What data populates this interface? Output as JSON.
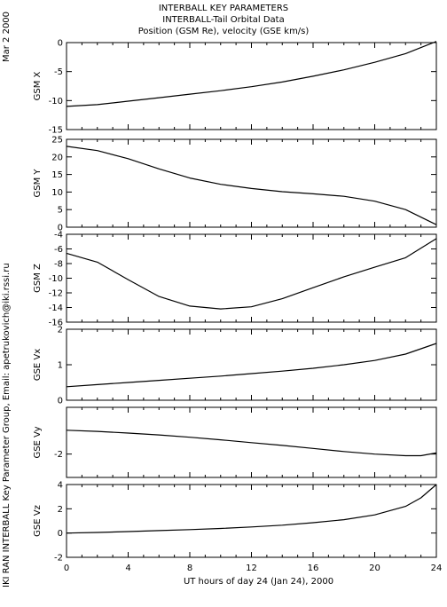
{
  "header": {
    "line1": "INTERBALL KEY PARAMETERS",
    "line2": "INTERBALL-Tail Orbital Data",
    "line3": "Position (GSM Re), velocity (GSE km/s)"
  },
  "date_label": "Mar  2 2000",
  "credit_label": "IKI RAN INTERBALL Key Parameter Group, Email: apetrukovich@iki.rssi.ru",
  "chart_data": {
    "type": "line",
    "title": "INTERBALL-Tail Orbital Data",
    "xlabel": "UT hours of day  24 (Jan 24), 2000",
    "x_ticks": [
      "0",
      "4",
      "8",
      "12",
      "16",
      "20",
      "24"
    ],
    "xlim": [
      0,
      24
    ],
    "grid": false,
    "panels": [
      {
        "name": "gsm-x",
        "ylabel": "GSM X",
        "ylim": [
          -15,
          0
        ],
        "yticks": [
          0,
          -5,
          -10,
          -15
        ],
        "x": [
          0,
          2,
          4,
          6,
          8,
          10,
          12,
          14,
          16,
          18,
          20,
          22,
          24
        ],
        "y": [
          -11.0,
          -10.7,
          -10.1,
          -9.5,
          -8.9,
          -8.3,
          -7.6,
          -6.8,
          -5.8,
          -4.7,
          -3.4,
          -1.9,
          0.2
        ]
      },
      {
        "name": "gsm-y",
        "ylabel": "GSM Y",
        "ylim": [
          0,
          25
        ],
        "yticks": [
          25,
          20,
          15,
          10,
          5,
          0
        ],
        "x": [
          0,
          2,
          4,
          6,
          8,
          10,
          12,
          14,
          16,
          18,
          20,
          22,
          24
        ],
        "y": [
          23.0,
          21.8,
          19.5,
          16.6,
          14.0,
          12.2,
          11.0,
          10.1,
          9.5,
          8.8,
          7.4,
          5.0,
          0.7
        ]
      },
      {
        "name": "gsm-z",
        "ylabel": "GSM Z",
        "ylim": [
          -16,
          -4
        ],
        "yticks": [
          -4,
          -6,
          -8,
          -10,
          -12,
          -14,
          -16
        ],
        "x": [
          0,
          2,
          4,
          6,
          8,
          10,
          12,
          14,
          16,
          18,
          20,
          22,
          24
        ],
        "y": [
          -6.6,
          -7.8,
          -10.2,
          -12.5,
          -13.8,
          -14.2,
          -13.9,
          -12.8,
          -11.3,
          -9.8,
          -8.5,
          -7.2,
          -4.6
        ]
      },
      {
        "name": "gse-vx",
        "ylabel": "GSE Vx",
        "ylim": [
          0,
          2
        ],
        "yticks": [
          2,
          1,
          0
        ],
        "x": [
          0,
          2,
          4,
          6,
          8,
          10,
          12,
          14,
          16,
          18,
          20,
          22,
          24
        ],
        "y": [
          0.38,
          0.44,
          0.5,
          0.56,
          0.62,
          0.68,
          0.75,
          0.82,
          0.9,
          1.0,
          1.12,
          1.3,
          1.6
        ]
      },
      {
        "name": "gse-vy",
        "ylabel": "GSE Vy",
        "ylim": [
          -3,
          0
        ],
        "yticks": [
          -2
        ],
        "x": [
          0,
          2,
          4,
          6,
          8,
          10,
          12,
          14,
          16,
          18,
          20,
          22,
          23,
          24
        ],
        "y": [
          -0.98,
          -1.03,
          -1.1,
          -1.18,
          -1.28,
          -1.39,
          -1.51,
          -1.63,
          -1.76,
          -1.89,
          -2.0,
          -2.07,
          -2.07,
          -1.95
        ]
      },
      {
        "name": "gse-vz",
        "ylabel": "GSE Vz",
        "ylim": [
          -2,
          4
        ],
        "yticks": [
          4,
          2,
          0,
          -2
        ],
        "x": [
          0,
          2,
          4,
          6,
          8,
          10,
          12,
          14,
          16,
          18,
          20,
          22,
          23,
          24
        ],
        "y": [
          0.0,
          0.05,
          0.12,
          0.2,
          0.28,
          0.38,
          0.5,
          0.65,
          0.85,
          1.1,
          1.5,
          2.2,
          2.9,
          4.0
        ]
      }
    ]
  }
}
